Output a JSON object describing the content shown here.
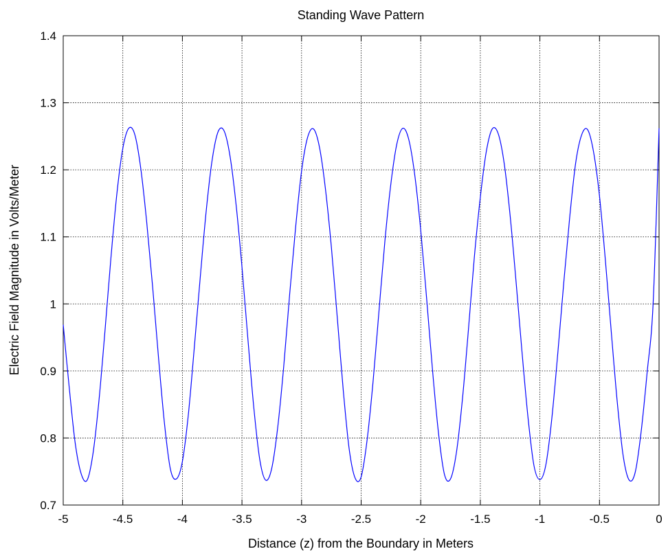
{
  "chart_data": {
    "type": "line",
    "title": "Standing Wave Pattern",
    "xlabel": "Distance (z) from the Boundary in Meters",
    "ylabel": "Electric Field Magnitude in Volts/Meter",
    "xlim": [
      -5,
      0
    ],
    "ylim": [
      0.7,
      1.4
    ],
    "x_ticks": [
      -5,
      -4.5,
      -4,
      -3.5,
      -3,
      -2.5,
      -2,
      -1.5,
      -1,
      -0.5,
      0
    ],
    "x_tick_labels": [
      "-5",
      "-4.5",
      "-4",
      "-3.5",
      "-3",
      "-2.5",
      "-2",
      "-1.5",
      "-1",
      "-0.5",
      "0"
    ],
    "y_ticks": [
      0.7,
      0.8,
      0.9,
      1.0,
      1.1,
      1.2,
      1.3,
      1.4
    ],
    "y_tick_labels": [
      "0.7",
      "0.8",
      "0.9",
      "1",
      "1.1",
      "1.2",
      "1.3",
      "1.4"
    ],
    "grid": true,
    "line_color": "#0000ff",
    "series": [
      {
        "x": [
          -5,
          -4.95,
          -4.9,
          -4.85,
          -4.8,
          -4.75,
          -4.7,
          -4.65,
          -4.6,
          -4.55,
          -4.5,
          -4.45,
          -4.4,
          -4.35,
          -4.3,
          -4.25,
          -4.2,
          -4.15,
          -4.1,
          -4.05,
          -4,
          -3.95,
          -3.9,
          -3.85,
          -3.8,
          -3.75,
          -3.7,
          -3.65,
          -3.6,
          -3.55,
          -3.5,
          -3.45,
          -3.4,
          -3.35,
          -3.3,
          -3.25,
          -3.2,
          -3.15,
          -3.1,
          -3.05,
          -3,
          -2.95,
          -2.9,
          -2.85,
          -2.8,
          -2.75,
          -2.7,
          -2.65,
          -2.6,
          -2.55,
          -2.5,
          -2.45,
          -2.4,
          -2.35,
          -2.3,
          -2.25,
          -2.2,
          -2.15,
          -2.1,
          -2.05,
          -2,
          -1.95,
          -1.9,
          -1.85,
          -1.8,
          -1.75,
          -1.7,
          -1.65,
          -1.6,
          -1.55,
          -1.5,
          -1.45,
          -1.4,
          -1.35,
          -1.3,
          -1.25,
          -1.2,
          -1.15,
          -1.1,
          -1.05,
          -1,
          -0.95,
          -0.9,
          -0.85,
          -0.8,
          -0.75,
          -0.7,
          -0.65,
          -0.6,
          -0.55,
          -0.5,
          -0.45,
          -0.4,
          -0.35,
          -0.3,
          -0.25,
          -0.2,
          -0.15,
          -0.1,
          -0.05,
          0
        ],
        "y": [
          0.969,
          0.876,
          0.793,
          0.747,
          0.737,
          0.777,
          0.856,
          0.959,
          1.068,
          1.164,
          1.232,
          1.262,
          1.253,
          1.203,
          1.123,
          1.026,
          0.919,
          0.821,
          0.753,
          0.739,
          0.765,
          0.835,
          0.935,
          1.04,
          1.139,
          1.215,
          1.257,
          1.258,
          1.22,
          1.149,
          1.055,
          0.947,
          0.844,
          0.767,
          0.737,
          0.755,
          0.816,
          0.906,
          1.014,
          1.114,
          1.198,
          1.248,
          1.261,
          1.234,
          1.172,
          1.085,
          0.979,
          0.871,
          0.783,
          0.74,
          0.742,
          0.797,
          0.884,
          0.99,
          1.095,
          1.18,
          1.239,
          1.262,
          1.245,
          1.192,
          1.11,
          1.007,
          0.899,
          0.806,
          0.745,
          0.739,
          0.779,
          0.858,
          0.961,
          1.07,
          1.159,
          1.227,
          1.261,
          1.254,
          1.21,
          1.132,
          1.033,
          0.928,
          0.831,
          0.759,
          0.738,
          0.76,
          0.829,
          0.926,
          1.031,
          1.129,
          1.21,
          1.252,
          1.26,
          1.227,
          1.161,
          1.064,
          0.956,
          0.852,
          0.772,
          0.737,
          0.749,
          0.81,
          0.898,
          1.0,
          1.262
        ]
      }
    ]
  }
}
